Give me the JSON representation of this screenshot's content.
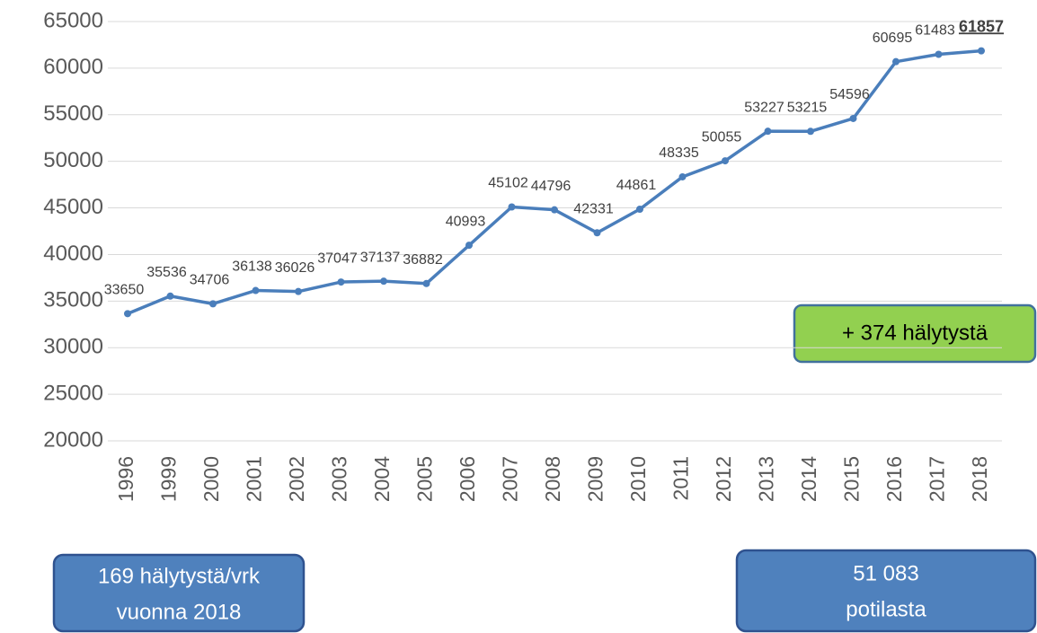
{
  "chart_data": {
    "type": "line",
    "categories": [
      "1996",
      "1999",
      "2000",
      "2001",
      "2002",
      "2003",
      "2004",
      "2005",
      "2006",
      "2007",
      "2008",
      "2009",
      "2010",
      "2011",
      "2012",
      "2013",
      "2014",
      "2015",
      "2016",
      "2017",
      "2018"
    ],
    "series": [
      {
        "color": "#4a7ebb",
        "values": [
          33650,
          35536,
          34706,
          36138,
          36026,
          37047,
          37137,
          36882,
          40993,
          45102,
          44796,
          42331,
          44861,
          48335,
          50055,
          53227,
          53215,
          54596,
          60695,
          61483,
          61857
        ]
      }
    ],
    "ylim": [
      20000,
      65000
    ],
    "yticks": [
      20000,
      25000,
      30000,
      35000,
      40000,
      45000,
      50000,
      55000,
      60000,
      65000
    ],
    "grid": true,
    "annotations": [
      [
        "+ 374 hälytystä"
      ],
      [
        "169 hälytystä/vrk",
        "vuonna 2018"
      ],
      [
        "51 083",
        "potilasta"
      ]
    ]
  }
}
